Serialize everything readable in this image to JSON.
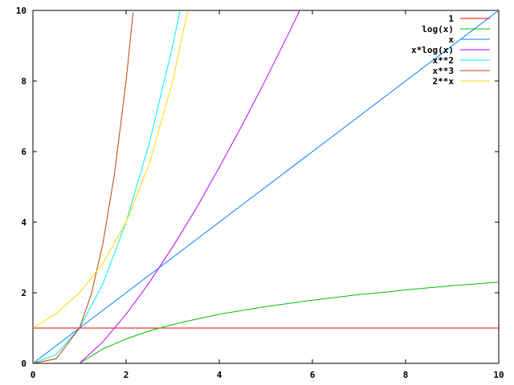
{
  "chart_data": {
    "type": "line",
    "title": "",
    "xlabel": "",
    "ylabel": "",
    "xlim": [
      0,
      10
    ],
    "ylim": [
      0,
      10
    ],
    "x_ticks": [
      "0",
      "2",
      "4",
      "6",
      "8",
      "10"
    ],
    "y_ticks": [
      "0",
      "2",
      "4",
      "6",
      "8",
      "10"
    ],
    "grid": false,
    "legend_position": "top-right",
    "series": [
      {
        "name": "1",
        "color": "#ff0000",
        "x": [
          0,
          10
        ],
        "y": [
          1,
          1
        ]
      },
      {
        "name": "log(x)",
        "color": "#00c000",
        "x": [
          1,
          1.5,
          2,
          2.5,
          3,
          3.5,
          4,
          4.5,
          5,
          5.5,
          6,
          6.5,
          7,
          7.5,
          8,
          8.5,
          9,
          9.5,
          10
        ],
        "y": [
          0,
          0.41,
          0.69,
          0.92,
          1.1,
          1.25,
          1.39,
          1.5,
          1.61,
          1.7,
          1.79,
          1.87,
          1.95,
          2.01,
          2.08,
          2.14,
          2.2,
          2.25,
          2.3
        ]
      },
      {
        "name": "x",
        "color": "#0080ff",
        "x": [
          0,
          10
        ],
        "y": [
          0,
          10
        ]
      },
      {
        "name": "x*log(x)",
        "color": "#c000ff",
        "x": [
          1,
          1.5,
          2,
          2.5,
          3,
          3.5,
          4,
          4.5,
          5,
          5.5,
          5.75
        ],
        "y": [
          0,
          0.61,
          1.39,
          2.29,
          3.3,
          4.38,
          5.55,
          6.77,
          8.05,
          9.38,
          10.06
        ]
      },
      {
        "name": "x**2",
        "color": "#00eeee",
        "x": [
          0,
          0.5,
          1,
          1.5,
          2,
          2.5,
          3,
          3.16
        ],
        "y": [
          0,
          0.25,
          1,
          2.25,
          4,
          6.25,
          9,
          10
        ]
      },
      {
        "name": "x**3",
        "color": "#c04000",
        "x": [
          0,
          0.5,
          1,
          1.25,
          1.5,
          1.75,
          2,
          2.15
        ],
        "y": [
          0,
          0.13,
          1,
          1.95,
          3.38,
          5.36,
          8,
          9.94
        ]
      },
      {
        "name": "2**x",
        "color": "#ffd700",
        "x": [
          0,
          0.5,
          1,
          1.5,
          2,
          2.5,
          3,
          3.32
        ],
        "y": [
          1,
          1.41,
          2,
          2.83,
          4,
          5.66,
          8,
          9.99
        ]
      }
    ]
  }
}
